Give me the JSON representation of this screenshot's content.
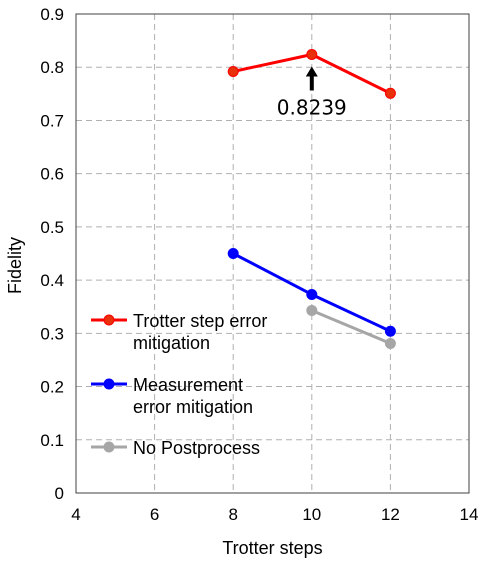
{
  "chart_data": {
    "type": "line",
    "xlabel": "Trotter steps",
    "ylabel": "Fidelity",
    "xlim": [
      4,
      14
    ],
    "ylim": [
      0,
      0.9
    ],
    "xticks": [
      "4",
      "6",
      "8",
      "10",
      "12",
      "14"
    ],
    "yticks": [
      "0",
      "0.1",
      "0.2",
      "0.3",
      "0.4",
      "0.5",
      "0.6",
      "0.7",
      "0.8",
      "0.9"
    ],
    "grid": true,
    "legend_position": "lower-left",
    "series": [
      {
        "name": "Trotter step error mitigation",
        "name_lines": [
          "Trotter step error",
          "mitigation"
        ],
        "color": "#ff0000",
        "marker_color": "#e8300a",
        "x": [
          8,
          10,
          12
        ],
        "y": [
          0.792,
          0.8239,
          0.751
        ]
      },
      {
        "name": "Measurement error mitigation",
        "name_lines": [
          "Measurement",
          "error mitigation"
        ],
        "color": "#0000ff",
        "marker_color": "#0000ff",
        "x": [
          8,
          10,
          12
        ],
        "y": [
          0.45,
          0.373,
          0.304
        ]
      },
      {
        "name": "No Postprocess",
        "name_lines": [
          "No Postprocess"
        ],
        "color": "#a6a6a6",
        "marker_color": "#a6a6a6",
        "x": [
          10,
          12
        ],
        "y": [
          0.343,
          0.281
        ]
      }
    ],
    "annotations": [
      {
        "text": "0.8239",
        "x": 10,
        "y": 0.8239,
        "arrow": "up"
      }
    ]
  }
}
